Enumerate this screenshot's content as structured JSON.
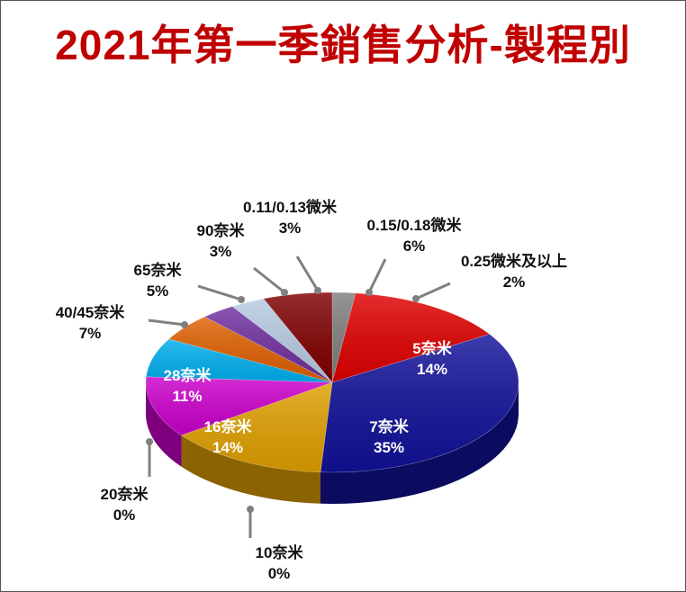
{
  "title": "2021年第一季銷售分析-製程別",
  "chart_data": {
    "type": "pie",
    "title": "2021年第一季銷售分析-製程別",
    "slices": [
      {
        "label": "0.25微米及以上",
        "value": 2,
        "value_label": "2%",
        "color": "#7f7f7f"
      },
      {
        "label": "5奈米",
        "value": 14,
        "value_label": "14%",
        "color": "#e00000"
      },
      {
        "label": "7奈米",
        "value": 35,
        "value_label": "35%",
        "color": "#111199"
      },
      {
        "label": "10奈米",
        "value": 0,
        "value_label": "0%",
        "color": "#1a1a2e"
      },
      {
        "label": "16奈米",
        "value": 14,
        "value_label": "14%",
        "color": "#e0a000"
      },
      {
        "label": "20奈米",
        "value": 0,
        "value_label": "0%",
        "color": "#aa8800"
      },
      {
        "label": "28奈米",
        "value": 11,
        "value_label": "11%",
        "color": "#cc00cc"
      },
      {
        "label": "40/45奈米",
        "value": 7,
        "value_label": "7%",
        "color": "#00b0f0"
      },
      {
        "label": "65奈米",
        "value": 5,
        "value_label": "5%",
        "color": "#e06000"
      },
      {
        "label": "90奈米",
        "value": 3,
        "value_label": "3%",
        "color": "#7030a0"
      },
      {
        "label": "0.11/0.13微米",
        "value": 3,
        "value_label": "3%",
        "color": "#b8cce4"
      },
      {
        "label": "0.15/0.18微米",
        "value": 6,
        "value_label": "6%",
        "color": "#800000"
      }
    ]
  }
}
